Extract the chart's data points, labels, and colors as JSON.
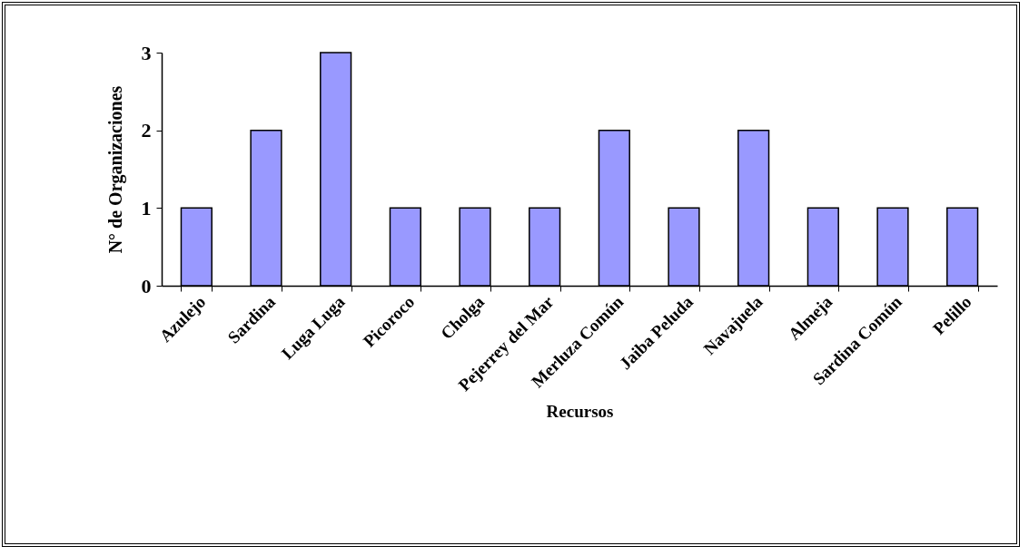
{
  "chart_data": {
    "type": "bar",
    "xlabel": "Recursos",
    "ylabel": "N° de Organizaciones",
    "categories": [
      "Azulejo",
      "Sardina",
      "Luga Luga",
      "Picoroco",
      "Cholga",
      "Pejerrey del Mar",
      "Merluza Común",
      "Jaiba Peluda",
      "Navajuela",
      "Almeja",
      "Sardina Común",
      "Pelillo"
    ],
    "values": [
      1,
      2,
      3,
      1,
      1,
      1,
      2,
      1,
      2,
      1,
      1,
      1
    ],
    "color": "#9999ff",
    "ylim": [
      0,
      3
    ],
    "yticks": [
      0,
      1,
      2,
      3
    ],
    "grid": false
  }
}
